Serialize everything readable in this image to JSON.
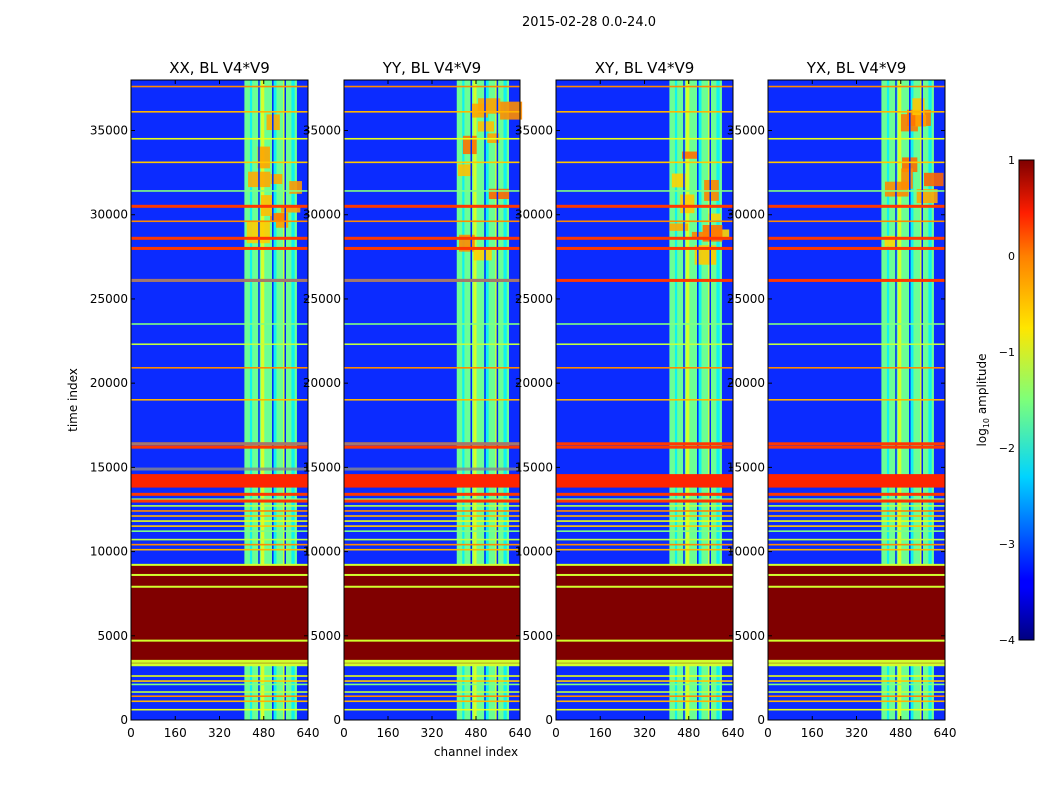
{
  "chart_data": {
    "type": "heatmap",
    "suptitle": "2015-02-28 0.0-24.0",
    "xlabel": "channel index",
    "ylabel": "time index",
    "xlim": [
      0,
      640
    ],
    "ylim": [
      0,
      38000
    ],
    "x_ticks": [
      "0",
      "160",
      "320",
      "480",
      "640"
    ],
    "y_ticks": [
      "0",
      "5000",
      "10000",
      "15000",
      "20000",
      "25000",
      "30000",
      "35000"
    ],
    "panels": [
      {
        "title": "XX, BL V4*V9"
      },
      {
        "title": "YY, BL V4*V9"
      },
      {
        "title": "XY, BL V4*V9"
      },
      {
        "title": "YX, BL V4*V9"
      }
    ],
    "colorbar": {
      "label": "log",
      "label_sub": "10",
      "label_rest": " amplitude",
      "range": [
        -4,
        1
      ],
      "ticks": [
        "−4",
        "−3",
        "−2",
        "−1",
        "0",
        "1"
      ],
      "colormap": "jet"
    },
    "saturated_time_ranges": [
      [
        3300,
        3800
      ],
      [
        3800,
        4700
      ],
      [
        4700,
        7900
      ],
      [
        7900,
        9200
      ]
    ],
    "flagged_time_ranges": [
      [
        13800,
        14600
      ]
    ],
    "bright_channel_range": [
      410,
      600
    ]
  }
}
